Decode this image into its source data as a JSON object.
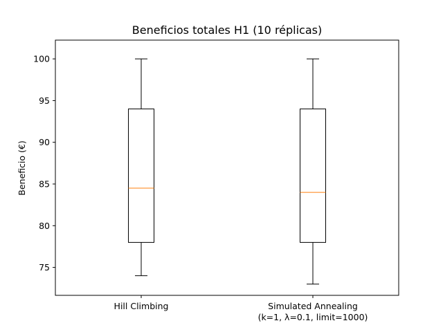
{
  "chart_data": {
    "type": "box",
    "title": "Beneficios totales H1 (10 réplicas)",
    "xlabel": "",
    "ylabel": "Beneficio (€)",
    "ylim": [
      71.65,
      102.25
    ],
    "yticks": [
      75,
      80,
      85,
      90,
      95,
      100
    ],
    "grid": false,
    "series": [
      {
        "name": "Hill Climbing",
        "label_lines": [
          "Hill Climbing"
        ],
        "whisker_low": 74,
        "q1": 78,
        "median": 84.5,
        "q3": 94,
        "whisker_high": 100
      },
      {
        "name": "Simulated Annealing\n(k=1, λ=0.1, limit=1000)",
        "label_lines": [
          "Simulated Annealing",
          "(k=1, λ=0.1, limit=1000)"
        ],
        "whisker_low": 73,
        "q1": 78,
        "median": 84,
        "q3": 94,
        "whisker_high": 100
      }
    ],
    "colors": {
      "box": "#000000",
      "median": "#ff7f0e"
    }
  }
}
